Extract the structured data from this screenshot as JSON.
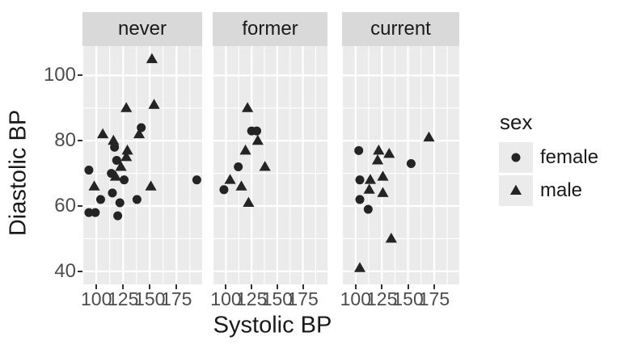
{
  "colors": {
    "point": "#242424",
    "panel_bg": "#ebebeb",
    "strip_bg": "#d9d9d9",
    "grid": "#ffffff",
    "tick_mark": "#333333",
    "tick_label": "#4d4d4d",
    "axis_title": "#1a1a1a",
    "legend_key_bg": "#ebebeb",
    "plot_bg": "#ffffff"
  },
  "axes": {
    "x_title": "Systolic BP",
    "y_title": "Diastolic BP"
  },
  "legend": {
    "title": "sex",
    "items": [
      {
        "label": "female",
        "marker": "circle"
      },
      {
        "label": "male",
        "marker": "triangle"
      }
    ]
  },
  "chart_data": {
    "type": "scatter",
    "title": "",
    "xlabel": "Systolic BP",
    "ylabel": "Diastolic BP",
    "xlim": [
      87,
      199
    ],
    "ylim": [
      36,
      109
    ],
    "x_ticks": [
      100,
      125,
      150,
      175
    ],
    "y_ticks": [
      40,
      60,
      80,
      100
    ],
    "x_minor": [
      87.5,
      112.5,
      137.5,
      162.5,
      187.5
    ],
    "y_minor": [
      50,
      70,
      90
    ],
    "grid": true,
    "legend_title": "sex",
    "legend_position": "right",
    "facets": [
      {
        "label": "never",
        "series": [
          {
            "name": "female",
            "marker": "circle",
            "points": [
              [
                142,
                84
              ],
              [
                117,
                78
              ],
              [
                119,
                74
              ],
              [
                93,
                71
              ],
              [
                114,
                70
              ],
              [
                126,
                68
              ],
              [
                194,
                68
              ],
              [
                115,
                64
              ],
              [
                104,
                62
              ],
              [
                138,
                62
              ],
              [
                122,
                61
              ],
              [
                93,
                58
              ],
              [
                99,
                58
              ],
              [
                120,
                57
              ]
            ]
          },
          {
            "name": "male",
            "marker": "triangle",
            "points": [
              [
                152,
                105
              ],
              [
                154,
                91
              ],
              [
                128,
                90
              ],
              [
                106,
                82
              ],
              [
                140,
                82
              ],
              [
                116,
                80
              ],
              [
                129,
                77
              ],
              [
                128,
                75
              ],
              [
                123,
                72
              ],
              [
                118,
                69
              ],
              [
                98,
                66
              ],
              [
                151,
                66
              ]
            ]
          }
        ]
      },
      {
        "label": "former",
        "series": [
          {
            "name": "female",
            "marker": "circle",
            "points": [
              [
                125,
                83
              ],
              [
                130,
                83
              ],
              [
                112,
                72
              ],
              [
                98,
                65
              ]
            ]
          },
          {
            "name": "male",
            "marker": "triangle",
            "points": [
              [
                121,
                90
              ],
              [
                131,
                80
              ],
              [
                119,
                77
              ],
              [
                138,
                72
              ],
              [
                104,
                68
              ],
              [
                115,
                66
              ],
              [
                122,
                61
              ]
            ]
          }
        ]
      },
      {
        "label": "current",
        "series": [
          {
            "name": "female",
            "marker": "circle",
            "points": [
              [
                103,
                77
              ],
              [
                153,
                73
              ],
              [
                104,
                68
              ],
              [
                104,
                62
              ],
              [
                112,
                59
              ]
            ]
          },
          {
            "name": "male",
            "marker": "triangle",
            "points": [
              [
                170,
                81
              ],
              [
                122,
                77
              ],
              [
                132,
                76
              ],
              [
                121,
                74
              ],
              [
                126,
                69
              ],
              [
                114,
                68
              ],
              [
                113,
                65
              ],
              [
                126,
                64
              ],
              [
                134,
                50
              ],
              [
                104,
                41
              ]
            ]
          }
        ]
      }
    ]
  }
}
